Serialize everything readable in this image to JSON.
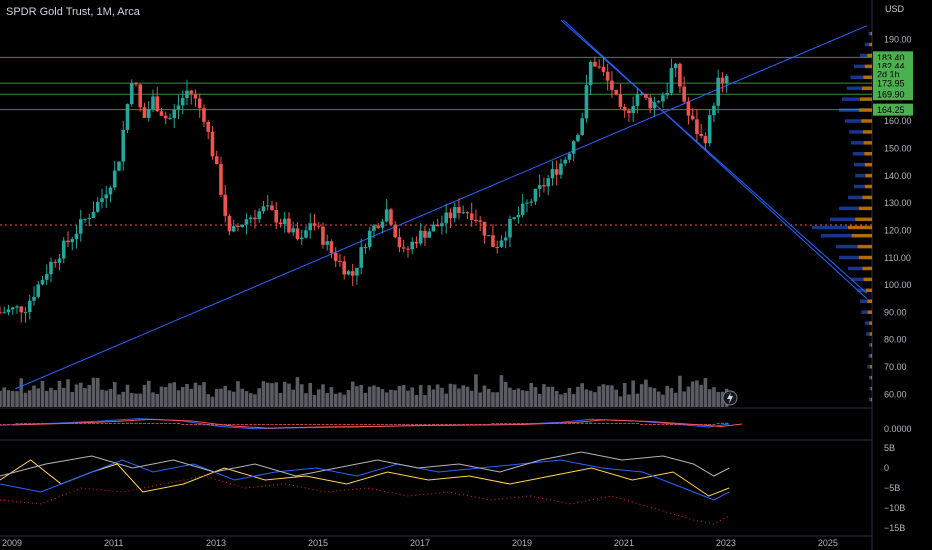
{
  "header": {
    "title": "SPDR Gold Trust, 1M, Arca"
  },
  "colors": {
    "background": "#000000",
    "up": "#26a69a",
    "down": "#ef5350",
    "trendline": "#2962ff",
    "hline": "#4caf50",
    "price_tag": "#4caf50",
    "volume": "#787b86",
    "volume_profile_up": "#2962ff",
    "volume_profile_down": "#ff9800",
    "macd_line": "#2962ff",
    "signal_line": "#ff5252",
    "osc_yellow": "#ffd54f",
    "osc_blue": "#2962ff",
    "osc_red": "#e91e63",
    "osc_white": "#b2b5be"
  },
  "chart_data": [
    {
      "type": "candlestick",
      "title": "SPDR Gold Trust, 1M, Arca",
      "ylabel": "USD",
      "ylim": [
        55,
        200
      ],
      "y_ticks": [
        60,
        70,
        80,
        90,
        100,
        110,
        120,
        130,
        140,
        150,
        160,
        170,
        180,
        190
      ],
      "y_tick_labels": [
        "60.00",
        "70.00",
        "80.00",
        "90.00",
        "100.00",
        "110.00",
        "120.00",
        "130.00",
        "140.00",
        "150.00",
        "160.00",
        "170.00",
        "180.00",
        "190.00"
      ],
      "x_range": [
        2009.0,
        2026.1
      ],
      "x_ticks": [
        2009,
        2011,
        2013,
        2015,
        2017,
        2019,
        2021,
        2023,
        2025
      ],
      "x_tick_labels": [
        "2009",
        "2011",
        "2013",
        "2015",
        "2017",
        "2019",
        "2021",
        "2023",
        "2025"
      ],
      "price_path": [
        [
          2009.0,
          90
        ],
        [
          2009.5,
          92
        ],
        [
          2010.0,
          108
        ],
        [
          2010.5,
          120
        ],
        [
          2011.0,
          132
        ],
        [
          2011.3,
          143
        ],
        [
          2011.6,
          178
        ],
        [
          2011.8,
          160
        ],
        [
          2012.0,
          168
        ],
        [
          2012.3,
          160
        ],
        [
          2012.7,
          172
        ],
        [
          2013.0,
          162
        ],
        [
          2013.3,
          138
        ],
        [
          2013.5,
          118
        ],
        [
          2013.8,
          124
        ],
        [
          2014.2,
          128
        ],
        [
          2014.6,
          122
        ],
        [
          2014.9,
          115
        ],
        [
          2015.1,
          124
        ],
        [
          2015.5,
          112
        ],
        [
          2015.9,
          103
        ],
        [
          2016.2,
          118
        ],
        [
          2016.6,
          128
        ],
        [
          2016.9,
          111
        ],
        [
          2017.2,
          118
        ],
        [
          2017.6,
          122
        ],
        [
          2018.0,
          128
        ],
        [
          2018.3,
          126
        ],
        [
          2018.7,
          114
        ],
        [
          2019.0,
          122
        ],
        [
          2019.5,
          133
        ],
        [
          2019.8,
          140
        ],
        [
          2020.1,
          147
        ],
        [
          2020.4,
          160
        ],
        [
          2020.6,
          183
        ],
        [
          2020.8,
          178
        ],
        [
          2021.0,
          172
        ],
        [
          2021.2,
          161
        ],
        [
          2021.5,
          170
        ],
        [
          2021.8,
          166
        ],
        [
          2022.1,
          172
        ],
        [
          2022.2,
          182
        ],
        [
          2022.5,
          162
        ],
        [
          2022.8,
          152
        ],
        [
          2022.9,
          159
        ],
        [
          2023.1,
          176
        ],
        [
          2023.2,
          170
        ],
        [
          2023.3,
          182.44
        ]
      ],
      "volume_pattern": [
        0.6,
        0.5,
        0.45,
        0.6,
        0.5,
        0.7,
        0.55,
        0.6,
        0.8,
        0.5,
        0.65,
        0.6,
        0.55,
        0.7,
        0.75,
        0.6,
        0.9,
        0.6,
        0.55,
        0.7,
        0.65,
        0.6,
        1.0,
        0.7,
        0.55,
        0.6,
        0.5,
        0.65,
        0.55,
        0.6,
        0.7,
        0.5,
        0.6,
        0.55,
        0.6,
        0.65,
        0.5,
        0.55,
        0.6,
        0.5,
        0.6,
        0.7,
        0.55,
        0.5,
        0.6,
        0.55,
        0.65,
        0.6
      ],
      "horizontal_levels": [
        183.4,
        173.95,
        169.9,
        164.25
      ],
      "dotted_level": 122,
      "price_tags": [
        {
          "label": "183.40",
          "value": 183.4
        },
        {
          "label": "182.44",
          "value": 180.3
        },
        {
          "label": "2d 1h",
          "value": 177.3
        },
        {
          "label": "173.95",
          "value": 173.95
        },
        {
          "label": "169.90",
          "value": 169.9
        },
        {
          "label": "164.25",
          "value": 164.25
        }
      ],
      "trendlines": [
        {
          "from": [
            2009.3,
            62
          ],
          "to": [
            2026.0,
            195
          ]
        },
        {
          "from": [
            2020.0,
            197
          ],
          "to": [
            2026.0,
            97
          ]
        },
        {
          "from": [
            2020.05,
            197
          ],
          "to": [
            2026.0,
            95
          ]
        }
      ],
      "volume_profile": [
        [
          58,
          0.05
        ],
        [
          62,
          0.04
        ],
        [
          66,
          0.05
        ],
        [
          70,
          0.08
        ],
        [
          74,
          0.06
        ],
        [
          78,
          0.05
        ],
        [
          82,
          0.1
        ],
        [
          86,
          0.12
        ],
        [
          90,
          0.18
        ],
        [
          94,
          0.2
        ],
        [
          98,
          0.25
        ],
        [
          102,
          0.35
        ],
        [
          106,
          0.4
        ],
        [
          110,
          0.55
        ],
        [
          114,
          0.6
        ],
        [
          118,
          0.85
        ],
        [
          121,
          1.0
        ],
        [
          124,
          0.7
        ],
        [
          128,
          0.55
        ],
        [
          132,
          0.4
        ],
        [
          136,
          0.3
        ],
        [
          140,
          0.28
        ],
        [
          144,
          0.3
        ],
        [
          148,
          0.32
        ],
        [
          152,
          0.35
        ],
        [
          156,
          0.38
        ],
        [
          160,
          0.45
        ],
        [
          164,
          0.55
        ],
        [
          168,
          0.5
        ],
        [
          172,
          0.42
        ],
        [
          176,
          0.36
        ],
        [
          180,
          0.3
        ],
        [
          184,
          0.2
        ],
        [
          188,
          0.12
        ],
        [
          192,
          0.06
        ]
      ]
    },
    {
      "type": "line",
      "name": "macd-pane",
      "y_tick_labels": [
        "0.0000"
      ],
      "macd_path": [
        [
          2009.0,
          -0.2
        ],
        [
          2010.0,
          0.1
        ],
        [
          2011.0,
          0.5
        ],
        [
          2011.7,
          0.9
        ],
        [
          2012.5,
          0.6
        ],
        [
          2013.3,
          -0.4
        ],
        [
          2014.0,
          -0.8
        ],
        [
          2015.0,
          -0.6
        ],
        [
          2016.0,
          -0.5
        ],
        [
          2017.0,
          -0.3
        ],
        [
          2018.0,
          -0.2
        ],
        [
          2019.0,
          -0.1
        ],
        [
          2020.0,
          0.3
        ],
        [
          2020.6,
          0.8
        ],
        [
          2021.5,
          0.5
        ],
        [
          2022.5,
          -0.2
        ],
        [
          2022.9,
          -0.5
        ],
        [
          2023.3,
          0.0
        ]
      ]
    },
    {
      "type": "line",
      "name": "oscillator-pane",
      "ylim": [
        -16,
        6
      ],
      "y_ticks": [
        5,
        0,
        -5,
        -10,
        -15
      ],
      "y_tick_labels": [
        "5B",
        "0",
        "−5B",
        "−10B",
        "−15B"
      ],
      "series": [
        {
          "values": [
            [
              2009.0,
              -3
            ],
            [
              2009.6,
              2
            ],
            [
              2010.2,
              -4
            ],
            [
              2010.8,
              -1
            ],
            [
              2011.3,
              1
            ],
            [
              2011.8,
              -6
            ],
            [
              2012.6,
              -4
            ],
            [
              2013.4,
              0
            ],
            [
              2014.2,
              -3
            ],
            [
              2015.0,
              -2
            ],
            [
              2015.8,
              -4
            ],
            [
              2016.6,
              -1
            ],
            [
              2017.4,
              -3
            ],
            [
              2018.2,
              -2
            ],
            [
              2019.0,
              -4
            ],
            [
              2019.8,
              -2
            ],
            [
              2020.6,
              0
            ],
            [
              2021.4,
              -3
            ],
            [
              2022.2,
              -1
            ],
            [
              2022.9,
              -7
            ],
            [
              2023.3,
              -5
            ]
          ]
        },
        {
          "values": [
            [
              2009.0,
              -4
            ],
            [
              2009.8,
              -6
            ],
            [
              2010.6,
              -2
            ],
            [
              2011.4,
              2
            ],
            [
              2012.0,
              -1
            ],
            [
              2012.8,
              1
            ],
            [
              2013.6,
              -3
            ],
            [
              2014.4,
              -1
            ],
            [
              2015.2,
              0
            ],
            [
              2016.0,
              -2
            ],
            [
              2016.8,
              1
            ],
            [
              2017.6,
              -1
            ],
            [
              2018.4,
              0
            ],
            [
              2019.2,
              1
            ],
            [
              2020.0,
              2
            ],
            [
              2020.8,
              0
            ],
            [
              2021.6,
              -1
            ],
            [
              2022.4,
              -5
            ],
            [
              2023.0,
              -8
            ],
            [
              2023.3,
              -6
            ]
          ]
        },
        {
          "values": [
            [
              2009.0,
              -8
            ],
            [
              2009.8,
              -9
            ],
            [
              2010.6,
              -5
            ],
            [
              2011.4,
              -6
            ],
            [
              2012.2,
              -4
            ],
            [
              2013.0,
              -2
            ],
            [
              2013.8,
              -5
            ],
            [
              2014.6,
              -4
            ],
            [
              2015.4,
              -6
            ],
            [
              2016.2,
              -5
            ],
            [
              2017.0,
              -7
            ],
            [
              2017.8,
              -6
            ],
            [
              2018.6,
              -8
            ],
            [
              2019.4,
              -7
            ],
            [
              2020.2,
              -9
            ],
            [
              2021.0,
              -7
            ],
            [
              2021.8,
              -10
            ],
            [
              2022.6,
              -13
            ],
            [
              2023.0,
              -14
            ],
            [
              2023.3,
              -12
            ]
          ]
        },
        {
          "values": [
            [
              2009.0,
              -2
            ],
            [
              2009.9,
              1
            ],
            [
              2010.8,
              3
            ],
            [
              2011.6,
              0
            ],
            [
              2012.4,
              2
            ],
            [
              2013.2,
              -1
            ],
            [
              2014.0,
              1
            ],
            [
              2014.8,
              -2
            ],
            [
              2015.6,
              0
            ],
            [
              2016.4,
              2
            ],
            [
              2017.2,
              0
            ],
            [
              2018.0,
              1
            ],
            [
              2018.8,
              -1
            ],
            [
              2019.6,
              2
            ],
            [
              2020.4,
              4
            ],
            [
              2021.2,
              2
            ],
            [
              2022.0,
              3
            ],
            [
              2022.6,
              1
            ],
            [
              2023.0,
              -2
            ],
            [
              2023.3,
              0
            ]
          ]
        }
      ]
    }
  ]
}
